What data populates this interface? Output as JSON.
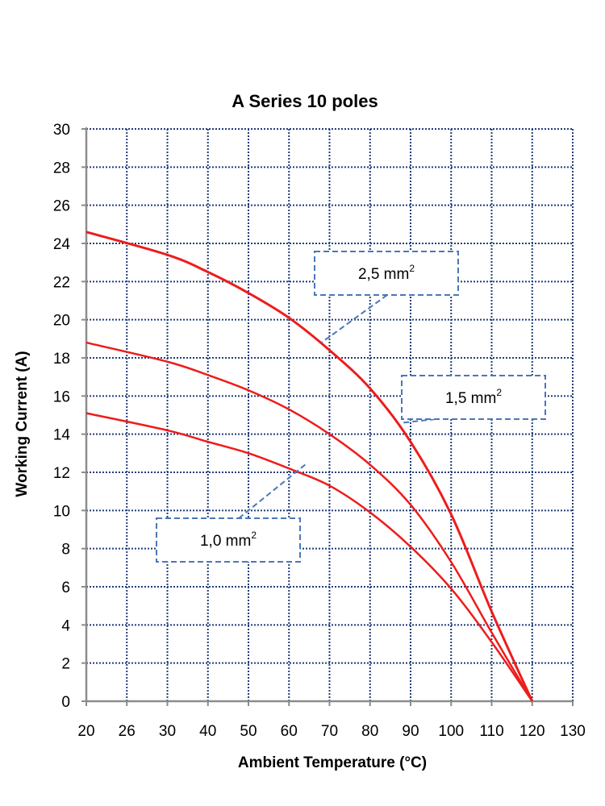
{
  "chart_data": {
    "type": "line",
    "title": "A Series 10 poles",
    "xlabel": "Ambient Temperature (°C)",
    "ylabel": "Working Current (A)",
    "x_ticks": [
      "20",
      "26",
      "30",
      "40",
      "50",
      "60",
      "70",
      "80",
      "90",
      "100",
      "110",
      "120",
      "130"
    ],
    "x_tick_values": [
      20,
      26,
      30,
      40,
      50,
      60,
      70,
      80,
      90,
      100,
      110,
      120,
      130
    ],
    "y_ticks": [
      "0",
      "2",
      "4",
      "6",
      "8",
      "10",
      "12",
      "14",
      "16",
      "18",
      "20",
      "22",
      "24",
      "26",
      "28",
      "30"
    ],
    "y_tick_values": [
      0,
      2,
      4,
      6,
      8,
      10,
      12,
      14,
      16,
      18,
      20,
      22,
      24,
      26,
      28,
      30
    ],
    "ylim": [
      0,
      30
    ],
    "grid": true,
    "line_color": "#ee1c1c",
    "series": [
      {
        "name": "2,5 mm",
        "x": [
          20,
          30,
          40,
          50,
          60,
          70,
          80,
          90,
          100,
          110,
          120
        ],
        "y": [
          24.6,
          23.4,
          22.5,
          21.4,
          20.1,
          18.4,
          16.4,
          13.6,
          9.8,
          4.7,
          0
        ]
      },
      {
        "name": "1,5 mm",
        "x": [
          20,
          30,
          40,
          50,
          60,
          70,
          80,
          90,
          100,
          110,
          120
        ],
        "y": [
          18.8,
          17.8,
          17.1,
          16.3,
          15.3,
          14.0,
          12.4,
          10.3,
          7.3,
          3.6,
          0
        ]
      },
      {
        "name": "1,0 mm",
        "x": [
          20,
          30,
          40,
          50,
          60,
          70,
          80,
          90,
          100,
          110,
          120
        ],
        "y": [
          15.1,
          14.2,
          13.6,
          13.0,
          12.2,
          11.3,
          9.9,
          8.1,
          5.9,
          3.1,
          0
        ]
      }
    ],
    "annotations": [
      {
        "label": "2,5 mm",
        "sup": "2",
        "series": 0,
        "anchor": [
          68,
          18.8
        ]
      },
      {
        "label": "1,5 mm",
        "sup": "2",
        "series": 1,
        "anchor": [
          88,
          14.6
        ]
      },
      {
        "label": "1,0 mm",
        "sup": "2",
        "series": 2,
        "anchor": [
          64,
          12.4
        ]
      }
    ]
  }
}
